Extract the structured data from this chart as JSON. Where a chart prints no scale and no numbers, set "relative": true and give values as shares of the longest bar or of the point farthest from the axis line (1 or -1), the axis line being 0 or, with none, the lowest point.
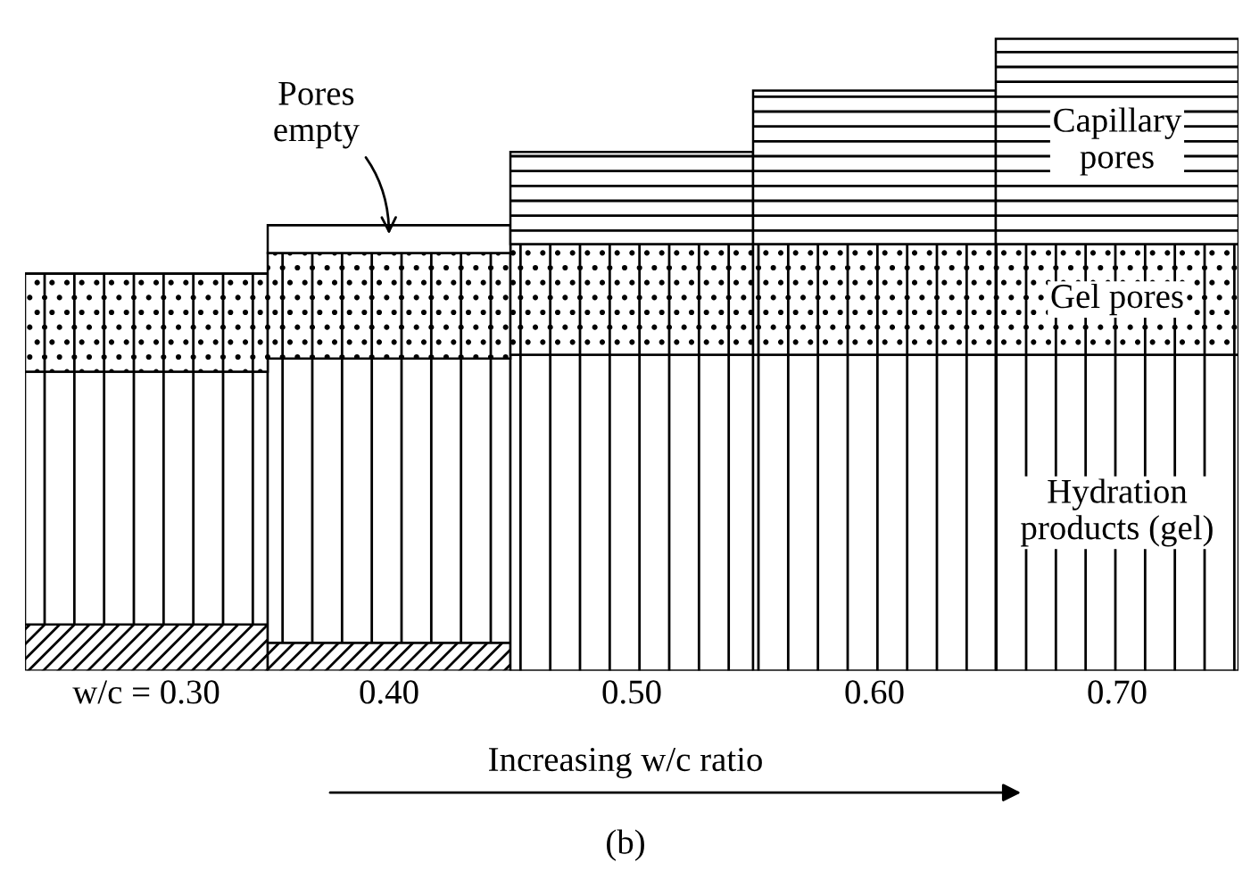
{
  "chart_data": {
    "type": "bar",
    "stacked": true,
    "relative": true,
    "legend": false,
    "categories": [
      "w/c = 0.30",
      "0.40",
      "0.50",
      "0.60",
      "0.70"
    ],
    "series": [
      {
        "color": "#000000",
        "values": [
          0.073,
          0.044,
          0,
          0,
          0
        ]
      },
      {
        "name": "Hydration products (gel)",
        "color": "#000000",
        "values": [
          0.4,
          0.45,
          0.5,
          0.5,
          0.5
        ]
      },
      {
        "name": "Gel pores",
        "color": "#000000",
        "values": [
          0.155,
          0.167,
          0.175,
          0.175,
          0.175
        ]
      },
      {
        "name": "Pores empty",
        "color": "#ffffff",
        "values": [
          0,
          0.044,
          0,
          0,
          0
        ]
      },
      {
        "name": "Capillary pores",
        "color": "#000000",
        "values": [
          0,
          0,
          0.146,
          0.243,
          0.325
        ]
      }
    ],
    "annotations": [
      "Increasing w/c ratio",
      "(b)"
    ]
  }
}
